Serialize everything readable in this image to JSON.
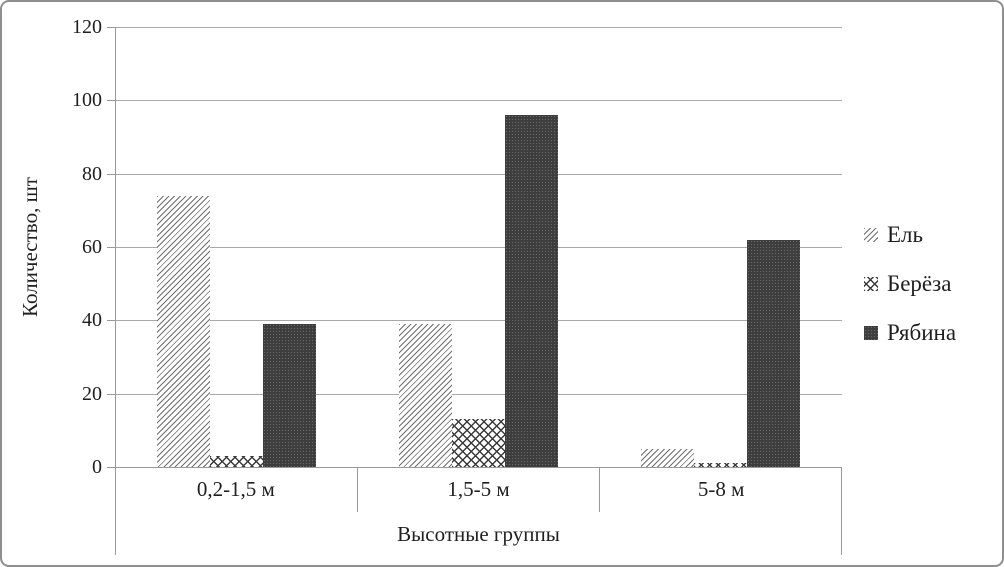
{
  "chart_data": {
    "type": "bar",
    "title": "",
    "xlabel": "Высотные группы",
    "ylabel": "Количество, шт",
    "categories": [
      "0,2-1,5 м",
      "1,5-5 м",
      "5-8 м"
    ],
    "series": [
      {
        "name": "Ель",
        "pattern": "diagonal-hatch",
        "values": [
          74,
          39,
          5
        ]
      },
      {
        "name": "Берёза",
        "pattern": "diamond-crosshatch",
        "values": [
          3,
          13,
          1
        ]
      },
      {
        "name": "Рябина",
        "pattern": "solid-dark-dotted",
        "values": [
          39,
          96,
          62
        ]
      }
    ],
    "ylim": [
      0,
      120
    ],
    "ytick_step": 20,
    "ytick_labels": [
      "120",
      "100",
      "80",
      "60",
      "40",
      "20",
      "0"
    ],
    "grid": true,
    "legend_position": "right"
  },
  "colors": {
    "text": "#1f1f1f",
    "axis_line": "#999999",
    "gridline": "#a8a8a8",
    "frame_border": "#8f8f8f",
    "hatch_line": "#6f6f6f",
    "crosshatch_line": "#3a3a3a",
    "dark_fill": "#3d3d3d",
    "background": "#ffffff"
  }
}
